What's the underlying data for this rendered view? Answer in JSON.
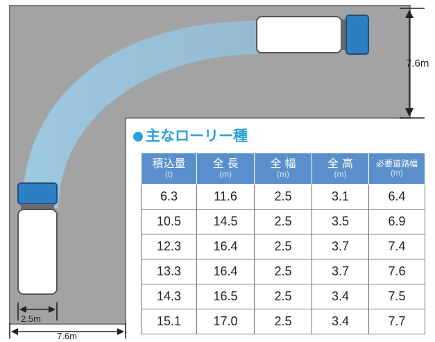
{
  "title": "●主なローリー種",
  "dimensions": {
    "right_height": "7.6m",
    "truck_width": "2.5m",
    "road_width": "7.6m"
  },
  "table": {
    "headers": [
      {
        "label": "積込量",
        "unit": "(t)"
      },
      {
        "label": "全 長",
        "unit": "(m)"
      },
      {
        "label": "全 幅",
        "unit": "(m)"
      },
      {
        "label": "全 高",
        "unit": "(m)"
      },
      {
        "label": "必要道路幅",
        "unit": "(m)"
      }
    ],
    "rows": [
      [
        "6.3",
        "11.6",
        "2.5",
        "3.1",
        "6.4"
      ],
      [
        "10.5",
        "14.5",
        "2.5",
        "3.5",
        "6.9"
      ],
      [
        "12.3",
        "16.4",
        "2.5",
        "3.7",
        "7.4"
      ],
      [
        "13.3",
        "16.4",
        "2.5",
        "3.7",
        "7.6"
      ],
      [
        "14.3",
        "16.5",
        "2.5",
        "3.4",
        "7.5"
      ],
      [
        "15.1",
        "17.0",
        "2.5",
        "3.4",
        "7.7"
      ]
    ]
  },
  "colors": {
    "road": "#a3a3a3",
    "sweep": "#8ec8ea",
    "truck_cab": "#2d7fc4",
    "header": "#5a8fcc",
    "title": "#2aa0d8"
  }
}
